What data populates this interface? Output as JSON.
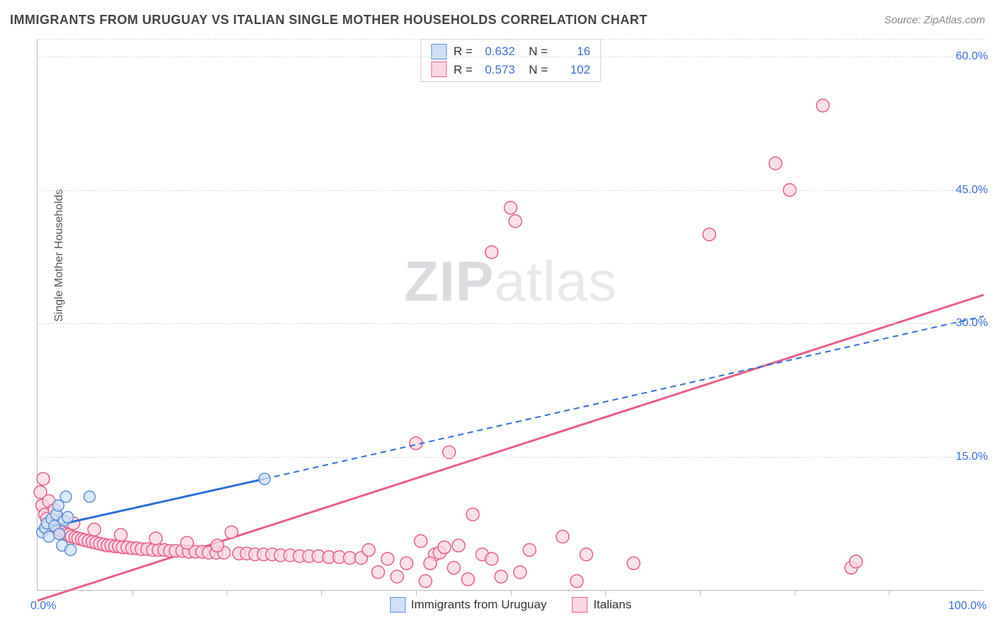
{
  "title": "IMMIGRANTS FROM URUGUAY VS ITALIAN SINGLE MOTHER HOUSEHOLDS CORRELATION CHART",
  "source": "Source: ZipAtlas.com",
  "y_axis_label": "Single Mother Households",
  "watermark_bold": "ZIP",
  "watermark_rest": "atlas",
  "chart": {
    "type": "scatter",
    "xlim": [
      0,
      100
    ],
    "ylim": [
      0,
      62
    ],
    "x_ticks_major": [
      0,
      100
    ],
    "x_tick_labels": [
      "0.0%",
      "100.0%"
    ],
    "x_minor_tick_step": 10,
    "y_ticks": [
      15,
      30,
      45,
      60
    ],
    "y_tick_labels": [
      "15.0%",
      "30.0%",
      "45.0%",
      "60.0%"
    ],
    "grid_color": "#dddddd",
    "axis_color": "#bbbbbb",
    "background_color": "#ffffff",
    "series": [
      {
        "name": "Immigrants from Uruguay",
        "marker_fill": "#cfe0f7",
        "marker_stroke": "#5a8fd6",
        "line_color": "#2e6fd6",
        "line_dash_after": true,
        "marker_r": 8,
        "R": "0.632",
        "N": "16",
        "trend_solid": {
          "x1": 0,
          "y1": 6.8,
          "x2": 24,
          "y2": 12.5
        },
        "trend_dash": {
          "x1": 24,
          "y1": 12.5,
          "x2": 100,
          "y2": 30.8
        },
        "points": [
          [
            0.5,
            6.5
          ],
          [
            0.8,
            7.0
          ],
          [
            1.0,
            7.5
          ],
          [
            1.2,
            6.0
          ],
          [
            1.5,
            8.0
          ],
          [
            1.8,
            7.2
          ],
          [
            2.0,
            8.5
          ],
          [
            2.3,
            6.3
          ],
          [
            2.6,
            5.0
          ],
          [
            2.2,
            9.5
          ],
          [
            2.8,
            7.8
          ],
          [
            3.2,
            8.2
          ],
          [
            3.5,
            4.5
          ],
          [
            3.0,
            10.5
          ],
          [
            5.5,
            10.5
          ],
          [
            24.0,
            12.5
          ]
        ]
      },
      {
        "name": "Italians",
        "marker_fill": "#fcd7e2",
        "marker_stroke": "#e85f8a",
        "line_color": "#e85f8a",
        "line_dash_after": false,
        "marker_r": 9,
        "R": "0.573",
        "N": "102",
        "trend_solid": {
          "x1": 0,
          "y1": -1.2,
          "x2": 100,
          "y2": 33.2
        },
        "points": [
          [
            0.3,
            11.0
          ],
          [
            0.5,
            9.5
          ],
          [
            0.8,
            8.5
          ],
          [
            1.0,
            8.0
          ],
          [
            1.3,
            7.5
          ],
          [
            1.6,
            7.2
          ],
          [
            2.0,
            7.0
          ],
          [
            2.3,
            6.8
          ],
          [
            2.6,
            6.5
          ],
          [
            3.0,
            6.3
          ],
          [
            3.3,
            6.2
          ],
          [
            3.6,
            6.0
          ],
          [
            4.0,
            5.9
          ],
          [
            4.3,
            5.8
          ],
          [
            4.7,
            5.7
          ],
          [
            5.0,
            5.6
          ],
          [
            5.4,
            5.5
          ],
          [
            5.8,
            5.4
          ],
          [
            6.2,
            5.3
          ],
          [
            6.6,
            5.2
          ],
          [
            7.0,
            5.1
          ],
          [
            7.4,
            5.0
          ],
          [
            7.8,
            5.0
          ],
          [
            8.2,
            4.9
          ],
          [
            8.6,
            4.9
          ],
          [
            9.0,
            4.8
          ],
          [
            9.5,
            4.8
          ],
          [
            10.0,
            4.7
          ],
          [
            10.5,
            4.7
          ],
          [
            11.0,
            4.6
          ],
          [
            11.6,
            4.6
          ],
          [
            12.2,
            4.5
          ],
          [
            12.8,
            4.5
          ],
          [
            13.4,
            4.5
          ],
          [
            14.0,
            4.4
          ],
          [
            14.6,
            4.4
          ],
          [
            15.3,
            4.4
          ],
          [
            16.0,
            4.3
          ],
          [
            16.7,
            4.3
          ],
          [
            17.4,
            4.3
          ],
          [
            18.1,
            4.2
          ],
          [
            18.9,
            4.2
          ],
          [
            19.7,
            4.2
          ],
          [
            20.5,
            6.5
          ],
          [
            21.3,
            4.1
          ],
          [
            22.1,
            4.1
          ],
          [
            23.0,
            4.0
          ],
          [
            23.9,
            4.0
          ],
          [
            24.8,
            4.0
          ],
          [
            25.7,
            3.9
          ],
          [
            26.7,
            3.9
          ],
          [
            27.7,
            3.8
          ],
          [
            28.7,
            3.8
          ],
          [
            29.7,
            3.8
          ],
          [
            30.8,
            3.7
          ],
          [
            31.9,
            3.7
          ],
          [
            33.0,
            3.6
          ],
          [
            34.2,
            3.6
          ],
          [
            35.0,
            4.5
          ],
          [
            36.0,
            2.0
          ],
          [
            37.0,
            3.5
          ],
          [
            38.0,
            1.5
          ],
          [
            39.0,
            3.0
          ],
          [
            40.0,
            16.5
          ],
          [
            40.5,
            5.5
          ],
          [
            41.0,
            1.0
          ],
          [
            42.0,
            4.0
          ],
          [
            43.5,
            15.5
          ],
          [
            44.0,
            2.5
          ],
          [
            46.0,
            8.5
          ],
          [
            47.0,
            4.0
          ],
          [
            48.0,
            3.5
          ],
          [
            41.5,
            3.0
          ],
          [
            44.5,
            5.0
          ],
          [
            45.5,
            1.2
          ],
          [
            49.0,
            1.5
          ],
          [
            42.5,
            4.2
          ],
          [
            43.0,
            4.8
          ],
          [
            50.0,
            43.0
          ],
          [
            51.0,
            2.0
          ],
          [
            52.0,
            4.5
          ],
          [
            55.5,
            6.0
          ],
          [
            48.0,
            38.0
          ],
          [
            50.5,
            41.5
          ],
          [
            57.0,
            1.0
          ],
          [
            58.0,
            4.0
          ],
          [
            63.0,
            3.0
          ],
          [
            71.0,
            40.0
          ],
          [
            83.0,
            54.5
          ],
          [
            78.0,
            48.0
          ],
          [
            79.5,
            45.0
          ],
          [
            86.0,
            2.5
          ],
          [
            86.5,
            3.2
          ],
          [
            1.2,
            10.0
          ],
          [
            0.6,
            12.5
          ],
          [
            1.8,
            9.0
          ],
          [
            3.8,
            7.5
          ],
          [
            6.0,
            6.8
          ],
          [
            8.8,
            6.2
          ],
          [
            12.5,
            5.8
          ],
          [
            15.8,
            5.3
          ],
          [
            19.0,
            5.0
          ]
        ]
      }
    ]
  },
  "legend_bottom": [
    {
      "label": "Immigrants from Uruguay",
      "fill": "#cfe0f7",
      "stroke": "#5a8fd6"
    },
    {
      "label": "Italians",
      "fill": "#fcd7e2",
      "stroke": "#e85f8a"
    }
  ],
  "colors": {
    "title": "#444444",
    "source": "#888888",
    "tick_label": "#3a6fd8"
  }
}
